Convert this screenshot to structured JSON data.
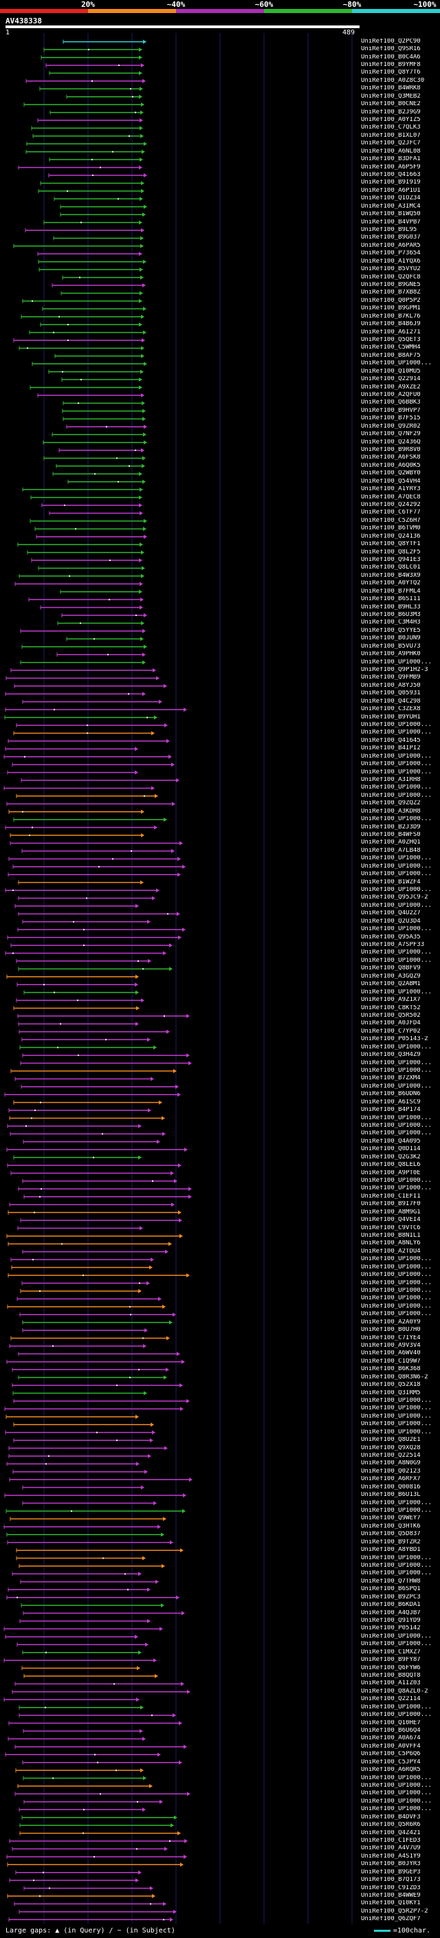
{
  "legend": {
    "labels": [
      "20%",
      "~40%",
      "~60%",
      "~80%",
      "~100%"
    ],
    "colors": [
      "#e8231c",
      "#f28a1e",
      "#a92fb4",
      "#2fb82f",
      "#2ecfcf"
    ]
  },
  "query": {
    "title": "AV438338",
    "start": "1",
    "end": "489"
  },
  "identity_colors": {
    "cyan": "#2ecfcf",
    "green": "#2fb82f",
    "magenta": "#c23bd0",
    "orange": "#f28a1e"
  },
  "hits": [
    "UniRef100_Q2PC90",
    "UniRef100_Q9SR16",
    "UniRef100_B0C4A6",
    "UniRef100_B9YMF8",
    "UniRef100_Q8Y7T6",
    "UniRef100_A0Z8C30",
    "UniRef100_B4WRK8",
    "UniRef100_Q3MEB2",
    "UniRef100_B0CNE2",
    "UniRef100_B2J9G9",
    "UniRef100_A0YIZ5",
    "UniRef100_C7QLK3",
    "UniRef100_B1XL07",
    "UniRef100_Q2JFC7",
    "UniRef100_A6NL08",
    "UniRef100_B3DFA1",
    "UniRef100_A6P5F9",
    "UniRef100_Q41663",
    "UniRef100_B9I919",
    "UniRef100_A6P1U1",
    "UniRef100_Q1OZ34",
    "UniRef100_A3IMC4",
    "UniRef100_B1WQ50",
    "UniRef100_B4VPB7",
    "UniRef100_B9L95",
    "UniRef100_B9G037",
    "UniRef100_A6PAR5",
    "UniRef100_P73654",
    "UniRef100_A1YQX6",
    "UniRef100_B5VYU2",
    "UniRef100_Q2QFC8",
    "UniRef100_B9GNE5",
    "UniRef100_B7XB8Z",
    "UniRef100_Q0P5P2",
    "UniRef100_B9GPM1",
    "UniRef100_B7KL76",
    "UniRef100_B4B6J9",
    "UniRef100_A6I271",
    "UniRef100_Q5QET3",
    "UniRef100_C5WMH4",
    "UniRef100_B8AF75",
    "UniRef100_UP1000...",
    "UniRef100_Q10MU5",
    "UniRef100_Q22914",
    "UniRef100_A9XZE2",
    "UniRef100_A2QFU0",
    "UniRef100_Q6BBK3",
    "UniRef100_B9HVP7",
    "UniRef100_B7F515",
    "UniRef100_Q9ZR02",
    "UniRef100_Q7NF29",
    "UniRef100_Q2436Q",
    "UniRef100_B9R8V0",
    "UniRef100_A6FSK8",
    "UniRef100_A6Q0K5",
    "UniRef100_Q2WBY0",
    "UniRef100_Q54VH4",
    "UniRef100_A1YRY3",
    "UniRef100_A7QEC8",
    "UniRef100_Q24292",
    "UniRef100_C6TF77",
    "UniRef100_C5Z6H7",
    "UniRef100_B6TVM0",
    "UniRef100_Q24136",
    "UniRef100_Q8YTF1",
    "UniRef100_Q8L2F5",
    "UniRef100_Q94IE3",
    "UniRef100_Q8LC01",
    "UniRef100_B4W3X9",
    "UniRef100_A0YTQ2",
    "UniRef100_B7FML4",
    "UniRef100_B6SI11",
    "UniRef100_B9HL33",
    "UniRef100_B6U3M3",
    "UniRef100_C3M4H3",
    "UniRef100_Q5YYE5",
    "UniRef100_B0JUN9",
    "UniRef100_B5VU73",
    "UniRef100_A9PHK0",
    "UniRef100_UP1000...",
    "UniRef100_Q9P1H2-3",
    "UniRef100_Q9FMB9",
    "UniRef100_A8YJ50",
    "UniRef100_Q05931",
    "UniRef100_Q4C298",
    "UniRef100_C3ZEX8",
    "UniRef100_B9YUH1",
    "UniRef100_UP1000...",
    "UniRef100_UP1000...",
    "UniRef100_Q41645",
    "UniRef100_B4IPI2",
    "UniRef100_UP1000...",
    "UniRef100_UP1000...",
    "UniRef100_UP1000...",
    "UniRef100_A3IRH8",
    "UniRef100_UP1000...",
    "UniRef100_UP1000...",
    "UniRef100_Q9ZQZ2",
    "UniRef100_A3KDH8",
    "UniRef100_UP1000...",
    "UniRef100_B2J3D9",
    "UniRef100_B4WFS0",
    "UniRef100_A0ZHQ1",
    "UniRef100_A7LB48",
    "UniRef100_UP1000...",
    "UniRef100_UP1000...",
    "UniRef100_UP1000...",
    "UniRef100_B1WZF4",
    "UniRef100_UP1000...",
    "UniRef100_Q95JC9-2",
    "UniRef100_UP1000...",
    "UniRef100_Q4U2Z7",
    "UniRef100_Q2U3D4",
    "UniRef100_UP1000...",
    "UniRef100_Q95A35",
    "UniRef100_A7SPF33",
    "UniRef100_UP1000...",
    "UniRef100_UP1000...",
    "UniRef100_Q8BFV9",
    "UniRef100_A3GQZ9",
    "UniRef100_Q2ABM1",
    "UniRef100_UP1000...",
    "UniRef100_A9Z1X7",
    "UniRef100_C8KT52",
    "UniRef100_Q5R502",
    "UniRef100_A0JFD4",
    "UniRef100_C7YP02",
    "UniRef100_P05143-2",
    "UniRef100_UP1000...",
    "UniRef100_Q3H4Z9",
    "UniRef100_UP1000...",
    "UniRef100_UP1000...",
    "UniRef100_B7ZXM4",
    "UniRef100_UP1000...",
    "UniRef100_B6UDN6",
    "UniRef100_A6ISC9",
    "UniRef100_B4P174",
    "UniRef100_UP1000...",
    "UniRef100_UP1000...",
    "UniRef100_UP1000...",
    "UniRef100_Q4A095",
    "UniRef100_Q0D114",
    "UniRef100_Q2G3K2",
    "UniRef100_Q8LEL6",
    "UniRef100_A9PT0E",
    "UniRef100_UP1000...",
    "UniRef100_UP1000...",
    "UniRef100_C1EFI1",
    "UniRef100_B9I7F0",
    "UniRef100_A8M9G1",
    "UniRef100_Q4VEI4",
    "UniRef100_C9VTC6",
    "UniRef100_B8NIL1",
    "UniRef100_A8NLY6",
    "UniRef100_A2TDU4",
    "UniRef100_UP1000...",
    "UniRef100_UP1000...",
    "UniRef100_UP1000...",
    "UniRef100_UP1000...",
    "UniRef100_UP1000...",
    "UniRef100_UP1000...",
    "UniRef100_UP1000...",
    "UniRef100_UP1000...",
    "UniRef100_A2A0Y9",
    "UniRef100_B0U7H0",
    "UniRef100_C7IYE4",
    "UniRef100_A9V3V4",
    "UniRef100_A6WV40",
    "UniRef100_C1Q9W7",
    "UniRef100_B6K368",
    "UniRef100_Q8R3N6-2",
    "UniRef100_Q52X18",
    "UniRef100_Q3IRM5",
    "UniRef100_UP1000...",
    "UniRef100_UP1000...",
    "UniRef100_UP1000...",
    "UniRef100_UP1000...",
    "UniRef100_UP1000...",
    "UniRef100_Q8U2E1",
    "UniRef100_Q9XQ28",
    "UniRef100_Q22514",
    "UniRef100_A8N0G9",
    "UniRef100_Q02123",
    "UniRef100_A6RFX7",
    "UniRef100_Q00816",
    "UniRef100_B6U13L",
    "UniRef100_UP1000...",
    "UniRef100_UP1000...",
    "UniRef100_Q9WEY7",
    "UniRef100_Q3HTK6",
    "UniRef100_Q5D837",
    "UniRef100_B9TZR2",
    "UniRef100_A8YBD1",
    "UniRef100_UP1000...",
    "UniRef100_UP1000...",
    "UniRef100_UP1000...",
    "UniRef100_Q7THW8",
    "UniRef100_B6SPQ1",
    "UniRef100_B9ZPC3",
    "UniRef100_B6KDA1",
    "UniRef100_A4QJB7",
    "UniRef100_Q91YD9",
    "UniRef100_P05142",
    "UniRef100_UP1000...",
    "UniRef100_UP1000...",
    "UniRef100_C1MXZ7",
    "UniRef100_B9FY87",
    "UniRef100_Q6FYW6",
    "UniRef100_B8QQT8",
    "UniRef100_A1IZ03",
    "UniRef100_Q8AZL0-2",
    "UniRef100_Q22114",
    "UniRef100_UP1000...",
    "UniRef100_UP1000...",
    "UniRef100_Q10HE7",
    "UniRef100_B6U6Q4",
    "UniRef100_A0A674",
    "UniRef100_A0VFF4",
    "UniRef100_C5P6Q6",
    "UniRef100_C5JPY4",
    "UniRef100_A6RQR5",
    "UniRef100_UP1000...",
    "UniRef100_UP1000...",
    "UniRef100_UP1000...",
    "UniRef100_UP1000...",
    "UniRef100_UP1000...",
    "UniRef100_B4DVF3",
    "UniRef100_Q5R6R6",
    "UniRef100_Q4Z421",
    "UniRef100_C1FED3",
    "UniRef100_A4V7U9",
    "UniRef100_A4S1Y9",
    "UniRef100_B0JYR3",
    "UniRef100_B9GEP3",
    "UniRef100_B7Q173",
    "UniRef100_C9IZD3",
    "UniRef100_B4WWE9",
    "UniRef100_Q10KY1",
    "UniRef100_Q5R2P7-2",
    "UniRef100_Q6ZQF7"
  ],
  "footer": {
    "gaps_legend": "Large gaps: ▲ (in Query) / ~ (in Subject)",
    "scale_label": "=100char."
  }
}
